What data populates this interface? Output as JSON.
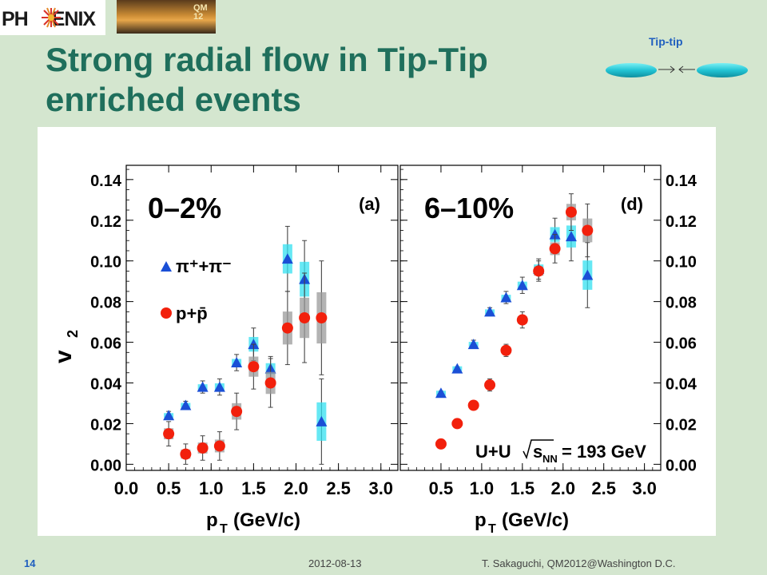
{
  "header": {
    "logo_text_left": "PH",
    "logo_text_right": "ENIX",
    "conf_logo_line1": "QM",
    "conf_logo_line2": "12"
  },
  "slide": {
    "title_line1": "Strong radial flow in Tip-Tip",
    "title_line2": "enriched events",
    "tiptip_label": "Tip-tip"
  },
  "footer": {
    "slide_number": "14",
    "date": "2012-08-13",
    "author": "T. Sakaguchi, QM2012@Washington D.C."
  },
  "colors": {
    "pion": "#1a4fd6",
    "pion_box": "#33e0f0",
    "proton": "#f2200c",
    "proton_box": "#9a9a9a",
    "title": "#1f6f5c",
    "background": "#d4e6cf"
  },
  "chart_data": [
    {
      "type": "scatter",
      "panel_label": "(a)",
      "centrality": "0–2%",
      "ylabel": "v",
      "ylabel_sub": "2",
      "xlabel": "p",
      "xlabel_sub": "T",
      "xlabel_unit": "(GeV/c)",
      "xlim": [
        0.0,
        3.2
      ],
      "ylim": [
        -0.003,
        0.147
      ],
      "xticks": [
        "0.0",
        "0.5",
        "1.0",
        "1.5",
        "2.0",
        "2.5",
        "3.0"
      ],
      "yticks": [
        "0.00",
        "0.02",
        "0.04",
        "0.06",
        "0.08",
        "0.10",
        "0.12",
        "0.14"
      ],
      "series": [
        {
          "name": "π⁺+π⁻",
          "marker": "triangle",
          "x": [
            0.5,
            0.7,
            0.9,
            1.1,
            1.3,
            1.5,
            1.7,
            1.9,
            2.1,
            2.3
          ],
          "y": [
            0.024,
            0.029,
            0.038,
            0.038,
            0.05,
            0.059,
            0.047,
            0.101,
            0.091,
            0.021
          ],
          "err": [
            0.002,
            0.002,
            0.003,
            0.004,
            0.004,
            0.008,
            0.006,
            0.016,
            0.019,
            0.021
          ]
        },
        {
          "name": "p+p̄",
          "marker": "circle",
          "x": [
            0.5,
            0.7,
            0.9,
            1.1,
            1.3,
            1.5,
            1.7,
            1.9,
            2.1,
            2.3
          ],
          "y": [
            0.015,
            0.005,
            0.008,
            0.009,
            0.026,
            0.048,
            0.04,
            0.067,
            0.072,
            0.072
          ],
          "err": [
            0.006,
            0.005,
            0.006,
            0.007,
            0.009,
            0.011,
            0.012,
            0.018,
            0.022,
            0.028
          ]
        }
      ]
    },
    {
      "type": "scatter",
      "panel_label": "(d)",
      "centrality": "6–10%",
      "annotation_system": "U+U",
      "annotation_energy": "s",
      "annotation_energy_sub": "NN",
      "annotation_value": "= 193 GeV",
      "xlabel": "p",
      "xlabel_sub": "T",
      "xlabel_unit": "(GeV/c)",
      "xlim": [
        0.0,
        3.2
      ],
      "ylim": [
        -0.003,
        0.147
      ],
      "xticks": [
        "0.5",
        "1.0",
        "1.5",
        "2.0",
        "2.5",
        "3.0"
      ],
      "yticks": [
        "0.00",
        "0.02",
        "0.04",
        "0.06",
        "0.08",
        "0.10",
        "0.12",
        "0.14"
      ],
      "series": [
        {
          "name": "π⁺+π⁻",
          "marker": "triangle",
          "x": [
            0.5,
            0.7,
            0.9,
            1.1,
            1.3,
            1.5,
            1.7,
            1.9,
            2.1,
            2.3
          ],
          "y": [
            0.035,
            0.047,
            0.059,
            0.075,
            0.082,
            0.088,
            0.096,
            0.113,
            0.112,
            0.093
          ],
          "err": [
            0.001,
            0.001,
            0.002,
            0.002,
            0.003,
            0.004,
            0.005,
            0.008,
            0.012,
            0.016
          ]
        },
        {
          "name": "p+p̄",
          "marker": "circle",
          "x": [
            0.5,
            0.7,
            0.9,
            1.1,
            1.3,
            1.5,
            1.7,
            1.9,
            2.1,
            2.3
          ],
          "y": [
            0.01,
            0.02,
            0.029,
            0.039,
            0.056,
            0.071,
            0.095,
            0.106,
            0.124,
            0.115
          ],
          "err": [
            0.001,
            0.002,
            0.002,
            0.003,
            0.003,
            0.004,
            0.005,
            0.007,
            0.009,
            0.013
          ]
        }
      ]
    }
  ]
}
